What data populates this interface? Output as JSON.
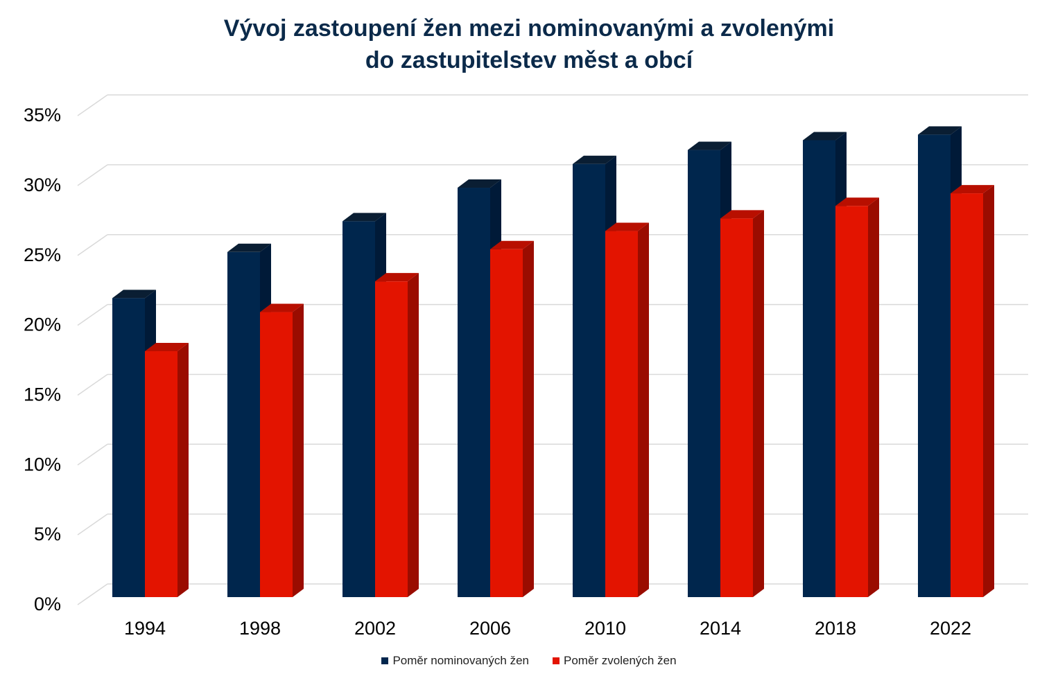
{
  "title": {
    "line1": "Vývoj zastoupení žen mezi nominovanými a zvolenými",
    "line2": "do zastupitelstev měst a obcí"
  },
  "colors": {
    "nominated_front": "#00264d",
    "nominated_side": "#001a38",
    "nominated_top": "#0a1e33",
    "elected_front": "#e31400",
    "elected_side": "#9a0c00",
    "elected_top": "#b80f00",
    "grid": "#d9d9d9",
    "title": "#0b2a4a"
  },
  "legend": {
    "items": [
      {
        "label": "Poměr nominovaných žen",
        "color": "#00264d"
      },
      {
        "label": "Poměr zvolených žen",
        "color": "#e31400"
      }
    ]
  },
  "chart_data": {
    "type": "bar",
    "style": "3d-clustered-column",
    "title": "Vývoj zastoupení žen mezi nominovanými a zvolenými do zastupitelstev měst a obcí",
    "xlabel": "",
    "ylabel": "",
    "categories": [
      "1994",
      "1998",
      "2002",
      "2006",
      "2010",
      "2014",
      "2018",
      "2022"
    ],
    "series": [
      {
        "name": "Poměr nominovaných žen",
        "values": [
          21.4,
          24.7,
          26.9,
          29.3,
          31.0,
          32.0,
          32.7,
          33.1
        ]
      },
      {
        "name": "Poměr zvolených žen",
        "values": [
          17.6,
          20.4,
          22.6,
          24.9,
          26.2,
          27.1,
          28.0,
          28.9
        ]
      }
    ],
    "y_ticks": [
      "0%",
      "5%",
      "10%",
      "15%",
      "20%",
      "25%",
      "30%",
      "35%"
    ],
    "ylim": [
      0,
      35
    ],
    "grid": true,
    "legend_position": "bottom"
  }
}
